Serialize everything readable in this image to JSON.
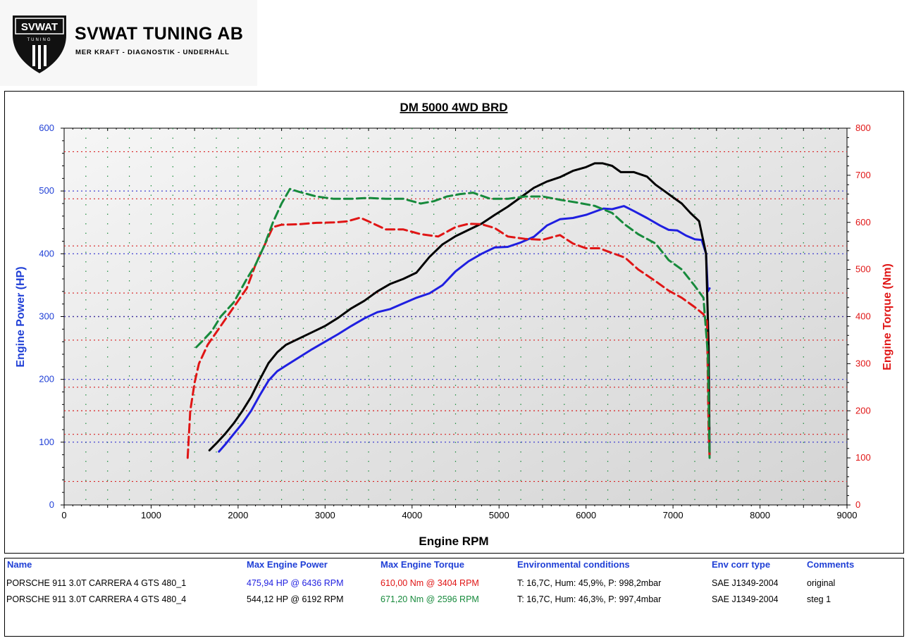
{
  "header": {
    "logo_badge": "SVWAT",
    "logo_sub": "TUNING",
    "brand_name": "SVWAT TUNING AB",
    "tagline": "MER KRAFT - DIAGNOSTIK - UNDERHÅLL"
  },
  "chart_data": {
    "type": "line",
    "title": "DM 5000 4WD BRD",
    "xlabel": "Engine RPM",
    "ylabel": "Engine Power (HP)",
    "y2label": "Engine Torque (Nm)",
    "xlim": [
      0,
      9000
    ],
    "ylim": [
      0,
      600
    ],
    "y2lim": [
      0,
      800
    ],
    "x_ticks": [
      "0",
      "1000",
      "2000",
      "3000",
      "4000",
      "5000",
      "6000",
      "7000",
      "8000",
      "9000"
    ],
    "y_ticks": [
      "0",
      "100",
      "200",
      "300",
      "400",
      "500",
      "600"
    ],
    "y2_ticks": [
      "0",
      "100",
      "200",
      "300",
      "400",
      "500",
      "600",
      "700",
      "800"
    ],
    "colors": {
      "power_1": "#1f1fe0",
      "power_2": "#000000",
      "torque_1": "#e01515",
      "torque_2": "#178a3c",
      "left_axis": "#1f3fd6",
      "right_axis": "#e01515",
      "grid_power": "#3030d0",
      "grid_torque": "#d82020",
      "grid_rpm": "#1a8a3a"
    },
    "series": [
      {
        "axis": "left",
        "style": "solid",
        "x": [
          1780,
          1850,
          1950,
          2050,
          2150,
          2250,
          2350,
          2450,
          2550,
          2700,
          2850,
          3000,
          3150,
          3300,
          3450,
          3600,
          3750,
          3900,
          4050,
          4200,
          4350,
          4500,
          4650,
          4800,
          4950,
          5100,
          5250,
          5400,
          5550,
          5700,
          5850,
          6000,
          6100,
          6200,
          6300,
          6436,
          6550,
          6700,
          6850,
          6950,
          7050,
          7150,
          7250,
          7330,
          7380,
          7400,
          7420
        ],
        "values": [
          85,
          96,
          113,
          130,
          150,
          175,
          198,
          213,
          222,
          235,
          248,
          260,
          272,
          285,
          297,
          307,
          312,
          321,
          330,
          337,
          350,
          372,
          388,
          400,
          410,
          411,
          418,
          427,
          445,
          455,
          457,
          462,
          467,
          472,
          471,
          476,
          468,
          457,
          445,
          438,
          437,
          429,
          423,
          422,
          400,
          340,
          345
        ]
      },
      {
        "axis": "left",
        "style": "solid",
        "x": [
          1670,
          1750,
          1850,
          1950,
          2050,
          2150,
          2250,
          2350,
          2450,
          2550,
          2700,
          2850,
          3000,
          3150,
          3300,
          3450,
          3600,
          3750,
          3900,
          4050,
          4200,
          4350,
          4500,
          4650,
          4800,
          4950,
          5100,
          5250,
          5400,
          5550,
          5700,
          5850,
          6000,
          6100,
          6192,
          6300,
          6400,
          6550,
          6700,
          6800,
          6900,
          7000,
          7100,
          7200,
          7300,
          7380,
          7410,
          7420
        ],
        "values": [
          87,
          98,
          113,
          130,
          150,
          172,
          200,
          226,
          243,
          255,
          265,
          275,
          285,
          298,
          313,
          325,
          340,
          352,
          360,
          370,
          395,
          415,
          428,
          438,
          448,
          462,
          475,
          490,
          505,
          515,
          522,
          532,
          538,
          544,
          544,
          540,
          530,
          530,
          523,
          510,
          500,
          490,
          480,
          465,
          452,
          400,
          250,
          80
        ]
      },
      {
        "axis": "right",
        "style": "dashed",
        "x": [
          1420,
          1450,
          1500,
          1550,
          1650,
          1800,
          1950,
          2100,
          2200,
          2300,
          2400,
          2500,
          2700,
          2900,
          3100,
          3250,
          3404,
          3500,
          3700,
          3900,
          4100,
          4300,
          4500,
          4650,
          4800,
          4950,
          5100,
          5300,
          5500,
          5700,
          5850,
          6000,
          6150,
          6300,
          6450,
          6600,
          6800,
          6950,
          7100,
          7250,
          7350,
          7390,
          7410,
          7420
        ],
        "values": [
          100,
          200,
          260,
          300,
          340,
          380,
          420,
          460,
          510,
          550,
          590,
          595,
          596,
          599,
          600,
          602,
          610,
          602,
          585,
          585,
          575,
          570,
          590,
          597,
          596,
          588,
          570,
          565,
          563,
          573,
          555,
          545,
          545,
          535,
          525,
          500,
          475,
          455,
          440,
          420,
          405,
          390,
          150,
          100
        ]
      },
      {
        "axis": "right",
        "style": "dashed",
        "x": [
          1520,
          1600,
          1700,
          1800,
          1950,
          2100,
          2200,
          2300,
          2400,
          2500,
          2596,
          2700,
          2900,
          3100,
          3300,
          3500,
          3700,
          3900,
          4100,
          4250,
          4400,
          4550,
          4700,
          4900,
          5100,
          5300,
          5500,
          5700,
          5900,
          6100,
          6300,
          6450,
          6600,
          6800,
          6950,
          7100,
          7250,
          7350,
          7400,
          7420
        ],
        "values": [
          335,
          350,
          370,
          400,
          430,
          480,
          510,
          550,
          600,
          640,
          671,
          665,
          655,
          650,
          650,
          652,
          650,
          650,
          640,
          645,
          655,
          660,
          663,
          650,
          650,
          655,
          655,
          648,
          642,
          635,
          620,
          595,
          575,
          555,
          520,
          500,
          465,
          440,
          320,
          100
        ]
      }
    ]
  },
  "legend_table": {
    "headers": [
      "Name",
      "Max Engine Power",
      "Max Engine Torque",
      "Environmental conditions",
      "Env corr type",
      "Comments"
    ],
    "rows": [
      [
        "PORSCHE 911 3.0T CARRERA 4 GTS 480_1",
        "475,94 HP @ 6436 RPM",
        "610,00 Nm @ 3404 RPM",
        "T: 16,7C, Hum: 45,9%, P: 998,2mbar",
        "SAE J1349-2004",
        "original"
      ],
      [
        "PORSCHE 911 3.0T CARRERA 4 GTS 480_4",
        "544,12 HP @ 6192 RPM",
        "671,20 Nm @ 2596 RPM",
        "T: 16,7C, Hum: 46,3%, P: 997,4mbar",
        "SAE J1349-2004",
        "steg 1"
      ]
    ]
  }
}
